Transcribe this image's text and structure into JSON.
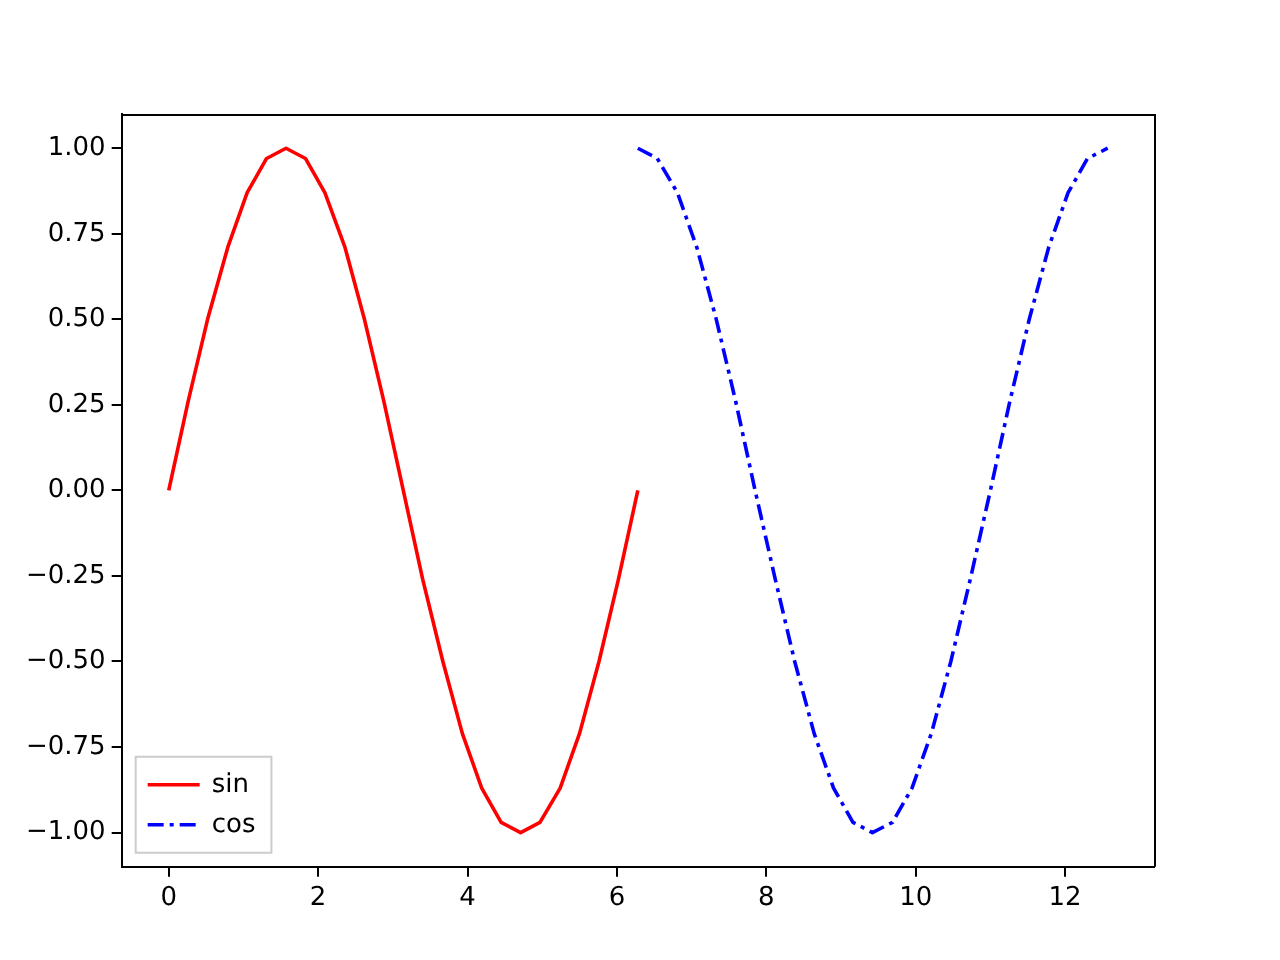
{
  "chart_data": {
    "type": "line",
    "xlim": [
      -0.63,
      13.19
    ],
    "ylim": [
      -1.1,
      1.1
    ],
    "xticks": [
      0,
      2,
      4,
      6,
      8,
      10,
      12
    ],
    "yticks": [
      {
        "value": -1,
        "label": "−1.00"
      },
      {
        "value": -0.75,
        "label": "−0.75"
      },
      {
        "value": -0.5,
        "label": "−0.50"
      },
      {
        "value": -0.25,
        "label": "−0.25"
      },
      {
        "value": 0,
        "label": "0.00"
      },
      {
        "value": 0.25,
        "label": "0.25"
      },
      {
        "value": 0.5,
        "label": "0.50"
      },
      {
        "value": 0.75,
        "label": "0.75"
      },
      {
        "value": 1,
        "label": "1.00"
      }
    ],
    "grid": false,
    "legend": "bottom left",
    "marker": "none",
    "series": [
      {
        "name": "sin",
        "color": "#ff0000",
        "line_style": "solid",
        "x": [
          0,
          0.26,
          0.52,
          0.79,
          1.05,
          1.31,
          1.57,
          1.83,
          2.09,
          2.36,
          2.62,
          2.88,
          3.14,
          3.4,
          3.67,
          3.93,
          4.19,
          4.45,
          4.71,
          4.97,
          5.24,
          5.5,
          5.76,
          6.02,
          6.28
        ],
        "values": [
          0,
          0.26,
          0.5,
          0.71,
          0.87,
          0.97,
          1,
          0.97,
          0.87,
          0.71,
          0.5,
          0.26,
          0,
          -0.26,
          -0.5,
          -0.71,
          -0.87,
          -0.97,
          -1,
          -0.97,
          -0.87,
          -0.71,
          -0.5,
          -0.26,
          0
        ]
      },
      {
        "name": "cos",
        "color": "#0000ff",
        "line_style": "dashdot",
        "x": [
          6.28,
          6.54,
          6.81,
          7.07,
          7.33,
          7.59,
          7.85,
          8.12,
          8.38,
          8.64,
          8.9,
          9.16,
          9.42,
          9.69,
          9.95,
          10.21,
          10.47,
          10.73,
          11,
          11.26,
          11.52,
          11.78,
          12.04,
          12.3,
          12.57
        ],
        "values": [
          1,
          0.97,
          0.87,
          0.71,
          0.5,
          0.26,
          0,
          -0.26,
          -0.5,
          -0.71,
          -0.87,
          -0.97,
          -1,
          -0.97,
          -0.87,
          -0.71,
          -0.5,
          -0.26,
          0,
          0.26,
          0.5,
          0.71,
          0.87,
          0.97,
          1
        ]
      }
    ]
  }
}
